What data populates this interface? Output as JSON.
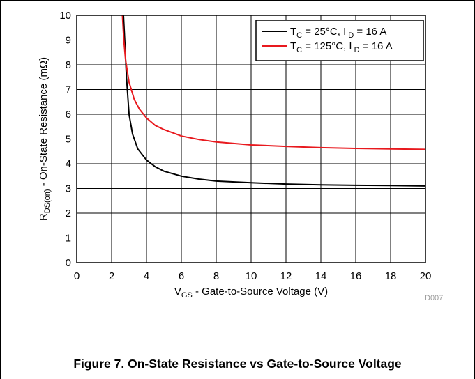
{
  "chart_data": {
    "type": "line",
    "xlabel": {
      "main": "V",
      "sub": "GS",
      "rest": " - Gate-to-Source Voltage (V)"
    },
    "ylabel": {
      "main": "R",
      "sub": "DS(on)",
      "rest": " - On-State Resistance (mΩ)"
    },
    "xlim": [
      0,
      20
    ],
    "ylim": [
      0,
      10
    ],
    "xticks": [
      0,
      2,
      4,
      6,
      8,
      10,
      12,
      14,
      16,
      18,
      20
    ],
    "yticks": [
      0,
      1,
      2,
      3,
      4,
      5,
      6,
      7,
      8,
      9,
      10
    ],
    "grid": true,
    "legend_position": "top-right",
    "series": [
      {
        "legend": {
          "t": "T",
          "tsub": "C",
          "mid": " = 25°C, I",
          "isub": " D",
          "end": " = 16 A"
        },
        "color": "#000000",
        "points": [
          [
            2.68,
            10
          ],
          [
            2.75,
            9.0
          ],
          [
            2.85,
            7.5
          ],
          [
            3.0,
            6.0
          ],
          [
            3.2,
            5.2
          ],
          [
            3.5,
            4.6
          ],
          [
            4.0,
            4.15
          ],
          [
            4.5,
            3.88
          ],
          [
            5,
            3.7
          ],
          [
            6,
            3.5
          ],
          [
            7,
            3.38
          ],
          [
            8,
            3.3
          ],
          [
            10,
            3.23
          ],
          [
            12,
            3.18
          ],
          [
            14,
            3.15
          ],
          [
            16,
            3.13
          ],
          [
            18,
            3.12
          ],
          [
            20,
            3.1
          ]
        ]
      },
      {
        "legend": {
          "t": "T",
          "tsub": "C",
          "mid": " = 125°C, I",
          "isub": " D",
          "end": " = 16 A"
        },
        "color": "#e8191e",
        "points": [
          [
            2.62,
            10
          ],
          [
            2.7,
            9.0
          ],
          [
            2.8,
            8.2
          ],
          [
            3.0,
            7.3
          ],
          [
            3.3,
            6.6
          ],
          [
            3.6,
            6.2
          ],
          [
            4.0,
            5.85
          ],
          [
            4.5,
            5.55
          ],
          [
            5,
            5.38
          ],
          [
            6,
            5.12
          ],
          [
            7,
            4.98
          ],
          [
            8,
            4.88
          ],
          [
            10,
            4.76
          ],
          [
            12,
            4.7
          ],
          [
            14,
            4.65
          ],
          [
            16,
            4.62
          ],
          [
            18,
            4.6
          ],
          [
            20,
            4.58
          ]
        ]
      }
    ],
    "code": "D007"
  },
  "caption": "Figure 7. On-State Resistance vs Gate-to-Source Voltage"
}
